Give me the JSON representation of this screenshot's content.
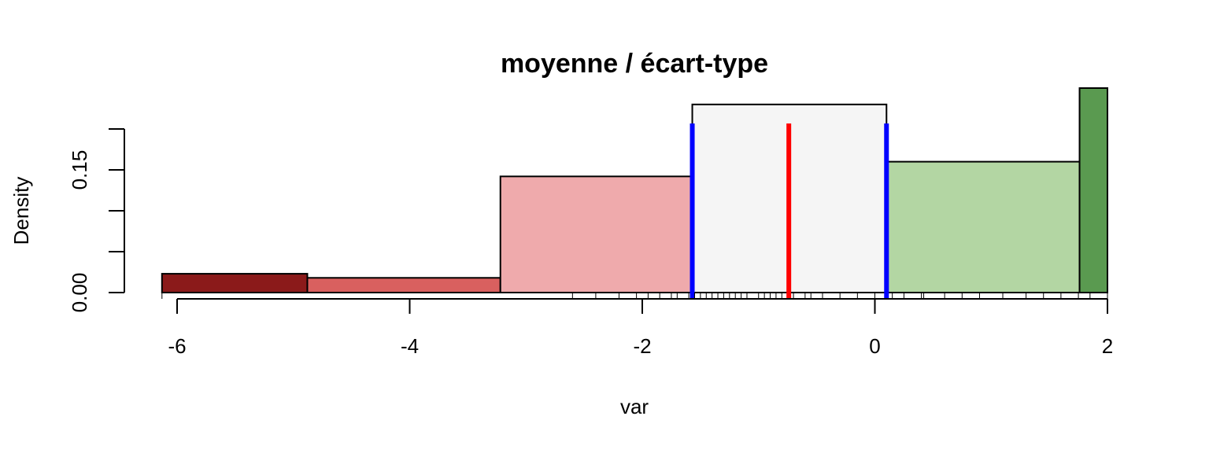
{
  "chart_data": {
    "type": "bar",
    "title": "moyenne / écart-type",
    "xlabel": "var",
    "ylabel": "Density",
    "xlim": [
      -6.15,
      2.0
    ],
    "ylim": [
      0,
      0.2
    ],
    "x_ticks": [
      -6,
      -4,
      -2,
      0,
      2
    ],
    "x_tick_labels": [
      "-6",
      "-4",
      "-2",
      "0",
      "2"
    ],
    "y_ticks": [
      0,
      0.05,
      0.1,
      0.15,
      0.2
    ],
    "y_tick_labels": [
      "0.00",
      "",
      "",
      "0.15",
      ""
    ],
    "bins": [
      {
        "x0": -6.13,
        "x1": -4.88,
        "density": 0.023,
        "color": "#8b1a1a"
      },
      {
        "x0": -4.88,
        "x1": -3.22,
        "density": 0.018,
        "color": "#d9605f"
      },
      {
        "x0": -3.22,
        "x1": -1.57,
        "density": 0.142,
        "color": "#efaaac"
      },
      {
        "x0": -1.57,
        "x1": 0.1,
        "density": 0.23,
        "color": "#f5f5f5"
      },
      {
        "x0": 0.1,
        "x1": 1.76,
        "density": 0.16,
        "color": "#b3d6a3"
      },
      {
        "x0": 1.76,
        "x1": 2.0,
        "density": 0.25,
        "color": "#5a9a50"
      }
    ],
    "vlines": [
      {
        "x": -0.74,
        "color": "#ff0000",
        "role": "mean"
      },
      {
        "x": -1.57,
        "color": "#0000ff",
        "role": "mean-sd"
      },
      {
        "x": 0.1,
        "color": "#0000ff",
        "role": "mean+sd"
      }
    ],
    "rug": [
      -6.13,
      -2.6,
      -2.4,
      -2.2,
      -2.05,
      -1.95,
      -1.85,
      -1.75,
      -1.7,
      -1.6,
      -1.55,
      -1.5,
      -1.45,
      -1.4,
      -1.35,
      -1.3,
      -1.25,
      -1.2,
      -1.15,
      -1.1,
      -1.0,
      -0.95,
      -0.9,
      -0.85,
      -0.8,
      -0.7,
      -0.6,
      -0.55,
      -0.45,
      -0.3,
      -0.15,
      0.0,
      0.15,
      0.25,
      0.4,
      0.42,
      0.6,
      0.75,
      0.9,
      1.1,
      1.3,
      1.45,
      1.6,
      1.75,
      1.85,
      2.0
    ],
    "grid": false,
    "legend": "none"
  }
}
